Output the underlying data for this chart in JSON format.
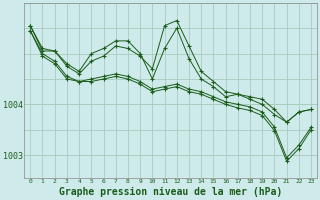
{
  "background_color": "#ceeaea",
  "grid_color": "#a8ccbe",
  "line_color": "#1a5c1a",
  "marker_color": "#1a5c1a",
  "xlabel": "Graphe pression niveau de la mer (hPa)",
  "xlabel_fontsize": 7,
  "ylabel_ticks": [
    1003,
    1004
  ],
  "xlim": [
    -0.5,
    23.5
  ],
  "ylim": [
    1002.55,
    1006.0
  ],
  "xticks": [
    0,
    1,
    2,
    3,
    4,
    5,
    6,
    7,
    8,
    9,
    10,
    11,
    12,
    13,
    14,
    15,
    16,
    17,
    18,
    19,
    20,
    21,
    22,
    23
  ],
  "series": [
    [
      1005.55,
      1005.05,
      1005.05,
      1004.8,
      1004.65,
      1005.0,
      1005.1,
      1005.25,
      1005.25,
      1005.0,
      1004.5,
      1005.1,
      1005.5,
      1004.9,
      1004.5,
      1004.35,
      1004.15,
      1004.2,
      1004.1,
      1004.0,
      1003.8,
      1003.65,
      1003.85,
      1003.9
    ],
    [
      1005.55,
      1005.1,
      1005.05,
      1004.75,
      1004.6,
      1004.85,
      1004.95,
      1005.15,
      1005.1,
      1004.95,
      1004.7,
      1005.55,
      1005.65,
      1005.15,
      1004.65,
      1004.45,
      1004.25,
      1004.2,
      1004.15,
      1004.1,
      1003.9,
      1003.65,
      1003.85,
      1003.9
    ],
    [
      1005.45,
      1005.0,
      1004.85,
      1004.55,
      1004.45,
      1004.5,
      1004.55,
      1004.6,
      1004.55,
      1004.45,
      1004.3,
      1004.35,
      1004.4,
      1004.3,
      1004.25,
      1004.15,
      1004.05,
      1004.0,
      1003.95,
      1003.85,
      1003.55,
      1002.95,
      1003.2,
      1003.55
    ],
    [
      1005.45,
      1004.95,
      1004.8,
      1004.5,
      1004.45,
      1004.45,
      1004.5,
      1004.55,
      1004.5,
      1004.4,
      1004.25,
      1004.3,
      1004.35,
      1004.25,
      1004.2,
      1004.1,
      1004.0,
      1003.93,
      1003.88,
      1003.78,
      1003.48,
      1002.88,
      1003.13,
      1003.5
    ]
  ]
}
